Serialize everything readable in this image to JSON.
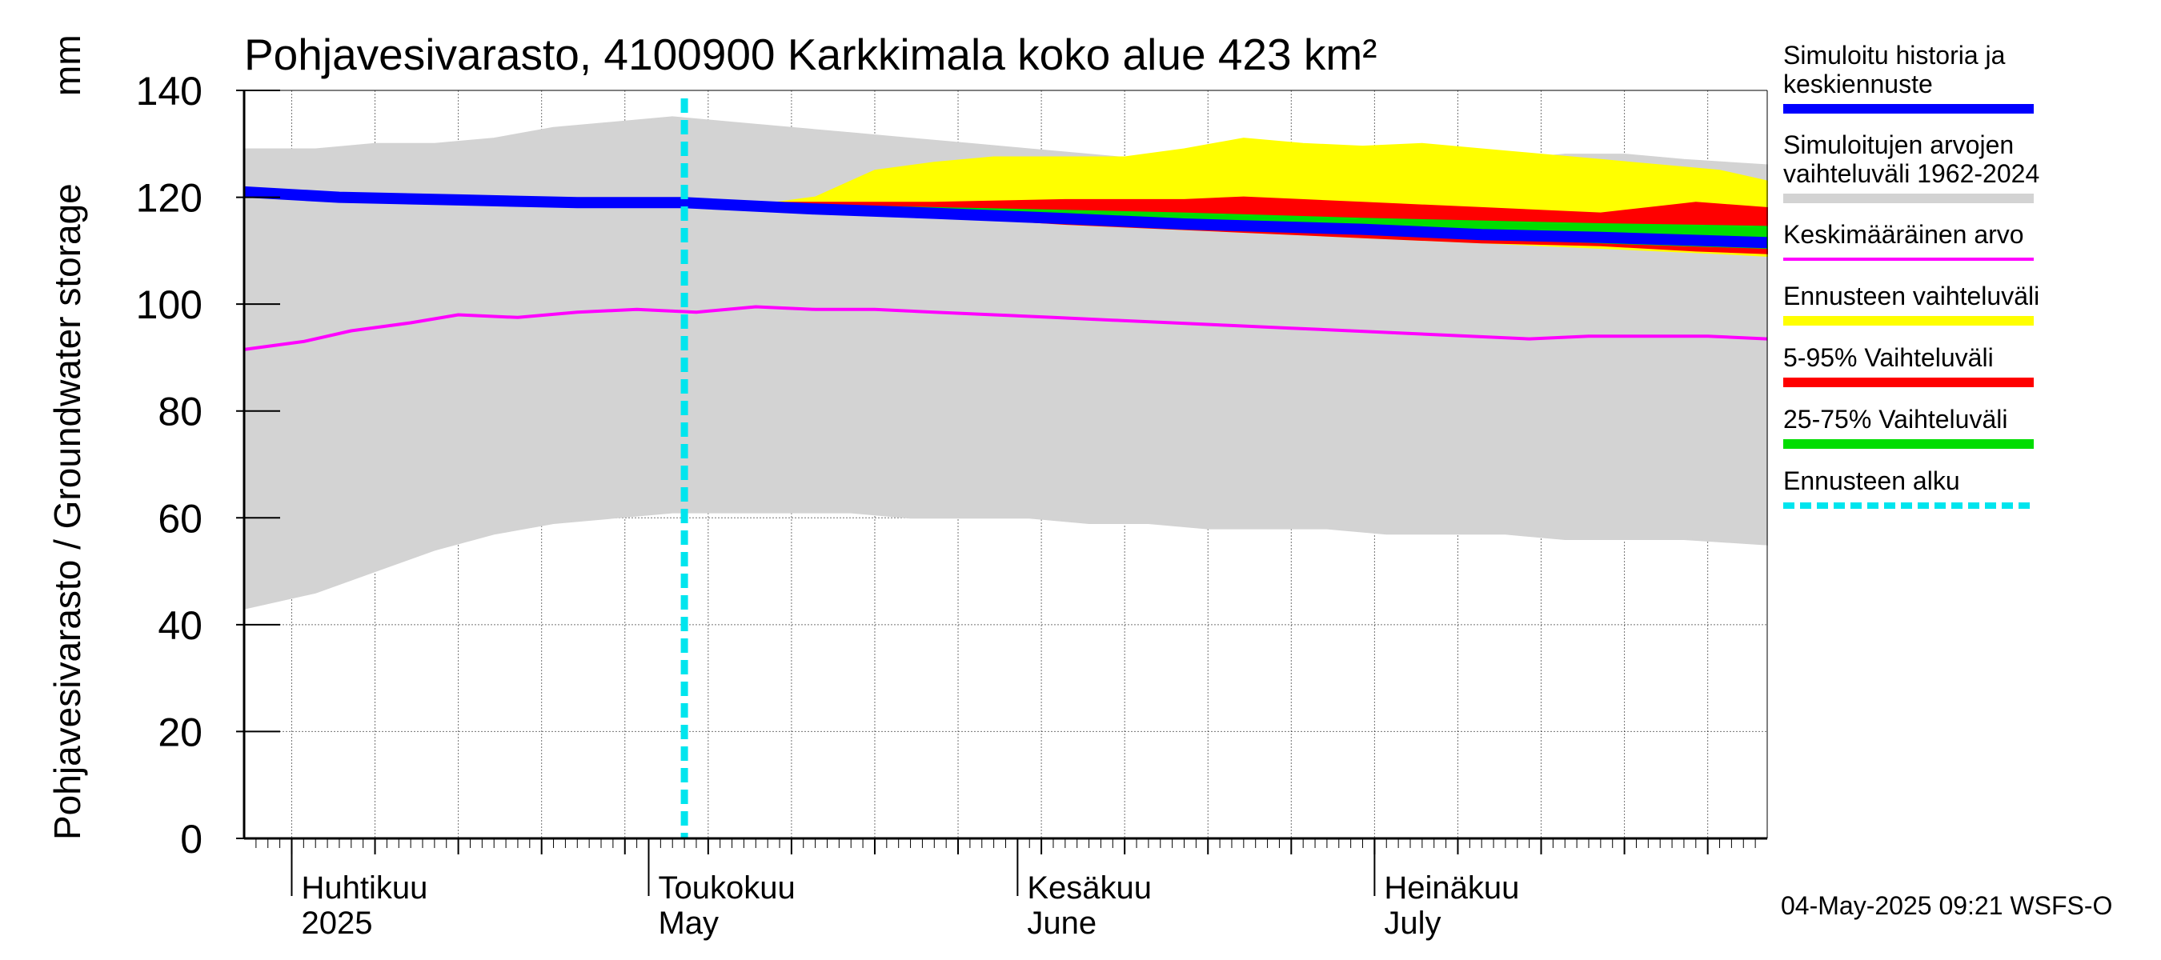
{
  "chart_data": {
    "type": "area",
    "title": "Pohjavesivarasto, 4100900 Karkkimala koko alue 423 km²",
    "ylabel": "Pohjavesivarasto / Groundwater storage",
    "yunit": "mm",
    "ylim": [
      0,
      140
    ],
    "yticks": [
      0,
      20,
      40,
      60,
      80,
      100,
      120,
      140
    ],
    "xlim": [
      "2025-03-28",
      "2025-08-03"
    ],
    "month_labels": [
      {
        "date": "2025-04-01",
        "fi": "Huhtikuu",
        "en": "2025"
      },
      {
        "date": "2025-05-01",
        "fi": "Toukokuu",
        "en": "May"
      },
      {
        "date": "2025-06-01",
        "fi": "Kesäkuu",
        "en": "June"
      },
      {
        "date": "2025-07-01",
        "fi": "Heinäkuu",
        "en": "July"
      }
    ],
    "forecast_start": "2025-05-04",
    "grid": true,
    "legend_position": "right",
    "series": [
      {
        "name": "Simuloitujen arvojen vaihteluväli 1962-2024",
        "kind": "band",
        "color": "#d3d3d3",
        "points": [
          {
            "date": "2025-03-28",
            "low": 43,
            "high": 129
          },
          {
            "date": "2025-04-03",
            "low": 46,
            "high": 129
          },
          {
            "date": "2025-04-08",
            "low": 50,
            "high": 130
          },
          {
            "date": "2025-04-13",
            "low": 54,
            "high": 130
          },
          {
            "date": "2025-04-18",
            "low": 57,
            "high": 131
          },
          {
            "date": "2025-04-23",
            "low": 59,
            "high": 133
          },
          {
            "date": "2025-04-28",
            "low": 60,
            "high": 134
          },
          {
            "date": "2025-05-03",
            "low": 61,
            "high": 135
          },
          {
            "date": "2025-05-08",
            "low": 61,
            "high": 134
          },
          {
            "date": "2025-05-13",
            "low": 61,
            "high": 133
          },
          {
            "date": "2025-05-18",
            "low": 61,
            "high": 132
          },
          {
            "date": "2025-05-23",
            "low": 60,
            "high": 131
          },
          {
            "date": "2025-05-28",
            "low": 60,
            "high": 130
          },
          {
            "date": "2025-06-02",
            "low": 60,
            "high": 129
          },
          {
            "date": "2025-06-07",
            "low": 59,
            "high": 128
          },
          {
            "date": "2025-06-12",
            "low": 59,
            "high": 127
          },
          {
            "date": "2025-06-17",
            "low": 58,
            "high": 127
          },
          {
            "date": "2025-06-22",
            "low": 58,
            "high": 128
          },
          {
            "date": "2025-06-27",
            "low": 58,
            "high": 128
          },
          {
            "date": "2025-07-02",
            "low": 57,
            "high": 128
          },
          {
            "date": "2025-07-07",
            "low": 57,
            "high": 127
          },
          {
            "date": "2025-07-12",
            "low": 57,
            "high": 127
          },
          {
            "date": "2025-07-17",
            "low": 56,
            "high": 128
          },
          {
            "date": "2025-07-22",
            "low": 56,
            "high": 128
          },
          {
            "date": "2025-07-27",
            "low": 56,
            "high": 127
          },
          {
            "date": "2025-08-03",
            "low": 55,
            "high": 126
          }
        ]
      },
      {
        "name": "Ennusteen vaihteluväli",
        "kind": "band",
        "color": "#ffff00",
        "points": [
          {
            "date": "2025-05-04",
            "low": 119,
            "high": 119
          },
          {
            "date": "2025-05-10",
            "low": 118,
            "high": 118.5
          },
          {
            "date": "2025-05-15",
            "low": 117.5,
            "high": 120
          },
          {
            "date": "2025-05-20",
            "low": 117,
            "high": 125
          },
          {
            "date": "2025-05-25",
            "low": 116.5,
            "high": 126.5
          },
          {
            "date": "2025-05-30",
            "low": 116,
            "high": 127.5
          },
          {
            "date": "2025-06-05",
            "low": 115,
            "high": 127.5
          },
          {
            "date": "2025-06-10",
            "low": 114.5,
            "high": 127.5
          },
          {
            "date": "2025-06-15",
            "low": 114,
            "high": 129
          },
          {
            "date": "2025-06-20",
            "low": 113.5,
            "high": 131
          },
          {
            "date": "2025-06-25",
            "low": 113,
            "high": 130
          },
          {
            "date": "2025-06-30",
            "low": 112.5,
            "high": 129.5
          },
          {
            "date": "2025-07-05",
            "low": 112,
            "high": 130
          },
          {
            "date": "2025-07-10",
            "low": 111.5,
            "high": 129
          },
          {
            "date": "2025-07-15",
            "low": 111,
            "high": 128
          },
          {
            "date": "2025-07-20",
            "low": 110.5,
            "high": 127
          },
          {
            "date": "2025-07-25",
            "low": 110,
            "high": 126
          },
          {
            "date": "2025-07-30",
            "low": 109.5,
            "high": 125
          },
          {
            "date": "2025-08-03",
            "low": 109,
            "high": 123
          }
        ]
      },
      {
        "name": "5-95% Vaihteluväli",
        "kind": "band",
        "color": "#ff0000",
        "points": [
          {
            "date": "2025-05-04",
            "low": 119,
            "high": 119
          },
          {
            "date": "2025-05-15",
            "low": 117.5,
            "high": 119
          },
          {
            "date": "2025-05-25",
            "low": 116.5,
            "high": 119
          },
          {
            "date": "2025-06-05",
            "low": 115,
            "high": 119.5
          },
          {
            "date": "2025-06-15",
            "low": 114,
            "high": 119.5
          },
          {
            "date": "2025-06-20",
            "low": 113.5,
            "high": 120
          },
          {
            "date": "2025-06-30",
            "low": 112.5,
            "high": 119
          },
          {
            "date": "2025-07-10",
            "low": 111.5,
            "high": 118
          },
          {
            "date": "2025-07-20",
            "low": 111,
            "high": 117
          },
          {
            "date": "2025-07-28",
            "low": 110,
            "high": 119
          },
          {
            "date": "2025-08-03",
            "low": 109.5,
            "high": 118
          }
        ]
      },
      {
        "name": "25-75% Vaihteluväli",
        "kind": "band",
        "color": "#00dd00",
        "points": [
          {
            "date": "2025-05-04",
            "low": 119,
            "high": 119
          },
          {
            "date": "2025-05-15",
            "low": 118,
            "high": 118.5
          },
          {
            "date": "2025-05-25",
            "low": 117,
            "high": 118
          },
          {
            "date": "2025-06-05",
            "low": 116,
            "high": 117.5
          },
          {
            "date": "2025-06-15",
            "low": 115,
            "high": 117
          },
          {
            "date": "2025-06-30",
            "low": 113.5,
            "high": 116
          },
          {
            "date": "2025-07-10",
            "low": 112.5,
            "high": 115.5
          },
          {
            "date": "2025-07-20",
            "low": 111.5,
            "high": 115
          },
          {
            "date": "2025-08-03",
            "low": 110.5,
            "high": 114.5
          }
        ]
      },
      {
        "name": "Simuloitu historia ja keskiennuste",
        "kind": "line",
        "color": "#0000ff",
        "points": [
          {
            "date": "2025-03-28",
            "value": 121
          },
          {
            "date": "2025-04-05",
            "value": 120
          },
          {
            "date": "2025-04-15",
            "value": 119.5
          },
          {
            "date": "2025-04-25",
            "value": 119
          },
          {
            "date": "2025-05-04",
            "value": 119
          },
          {
            "date": "2025-05-15",
            "value": 117.8
          },
          {
            "date": "2025-05-25",
            "value": 117
          },
          {
            "date": "2025-06-05",
            "value": 116
          },
          {
            "date": "2025-06-15",
            "value": 115
          },
          {
            "date": "2025-06-30",
            "value": 114
          },
          {
            "date": "2025-07-10",
            "value": 113
          },
          {
            "date": "2025-07-20",
            "value": 112.5
          },
          {
            "date": "2025-08-03",
            "value": 111.5
          }
        ]
      },
      {
        "name": "Keskimääräinen arvo",
        "kind": "line",
        "color": "#ff00ff",
        "points": [
          {
            "date": "2025-03-28",
            "value": 91.5
          },
          {
            "date": "2025-04-02",
            "value": 93
          },
          {
            "date": "2025-04-06",
            "value": 95
          },
          {
            "date": "2025-04-11",
            "value": 96.5
          },
          {
            "date": "2025-04-15",
            "value": 98
          },
          {
            "date": "2025-04-20",
            "value": 97.5
          },
          {
            "date": "2025-04-25",
            "value": 98.5
          },
          {
            "date": "2025-04-30",
            "value": 99
          },
          {
            "date": "2025-05-05",
            "value": 98.5
          },
          {
            "date": "2025-05-10",
            "value": 99.5
          },
          {
            "date": "2025-05-15",
            "value": 99
          },
          {
            "date": "2025-05-20",
            "value": 99
          },
          {
            "date": "2025-05-25",
            "value": 98.5
          },
          {
            "date": "2025-05-30",
            "value": 98
          },
          {
            "date": "2025-06-04",
            "value": 97.5
          },
          {
            "date": "2025-06-09",
            "value": 97
          },
          {
            "date": "2025-06-14",
            "value": 96.5
          },
          {
            "date": "2025-06-19",
            "value": 96
          },
          {
            "date": "2025-06-24",
            "value": 95.5
          },
          {
            "date": "2025-06-29",
            "value": 95
          },
          {
            "date": "2025-07-04",
            "value": 94.5
          },
          {
            "date": "2025-07-09",
            "value": 94
          },
          {
            "date": "2025-07-14",
            "value": 93.5
          },
          {
            "date": "2025-07-19",
            "value": 94
          },
          {
            "date": "2025-07-24",
            "value": 94
          },
          {
            "date": "2025-07-29",
            "value": 94
          },
          {
            "date": "2025-08-03",
            "value": 93.5
          }
        ]
      }
    ],
    "legend": [
      {
        "label_lines": [
          "Simuloitu historia ja",
          "keskiennuste"
        ],
        "color": "#0000ff",
        "style": "solid"
      },
      {
        "label_lines": [
          "Simuloitujen arvojen",
          "vaihteluväli 1962-2024"
        ],
        "color": "#d3d3d3",
        "style": "solid"
      },
      {
        "label_lines": [
          "Keskimääräinen arvo"
        ],
        "color": "#ff00ff",
        "style": "thin"
      },
      {
        "label_lines": [
          "Ennusteen vaihteluväli"
        ],
        "color": "#ffff00",
        "style": "solid"
      },
      {
        "label_lines": [
          "5-95% Vaihteluväli"
        ],
        "color": "#ff0000",
        "style": "solid"
      },
      {
        "label_lines": [
          "25-75% Vaihteluväli"
        ],
        "color": "#00dd00",
        "style": "solid"
      },
      {
        "label_lines": [
          "Ennusteen alku"
        ],
        "color": "#00e5ee",
        "style": "dashed"
      }
    ],
    "footer": "04-May-2025 09:21 WSFS-O"
  }
}
